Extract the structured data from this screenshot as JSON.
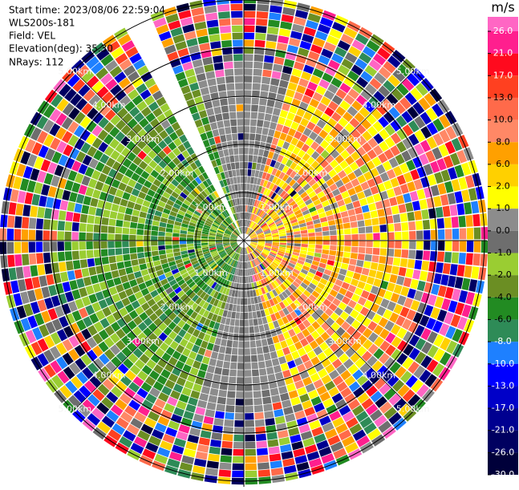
{
  "chart_data": {
    "type": "ppi",
    "info": [
      "Start time: 2023/08/06 22:59:04",
      "WLS200s-181",
      "Field: VEL",
      "Elevation(deg): 35.30",
      "NRays: 112"
    ],
    "range_rings": [
      {
        "value": 1,
        "label": "1.00km"
      },
      {
        "value": 2,
        "label": "2.00km"
      },
      {
        "value": 3,
        "label": "3.00km"
      },
      {
        "value": 4,
        "label": "4.00km"
      },
      {
        "value": 5,
        "label": "5.00km"
      }
    ],
    "colorbar": {
      "unit": "m/s",
      "ticks": [
        {
          "value": 26,
          "label": "26.0"
        },
        {
          "value": 21,
          "label": "21.0"
        },
        {
          "value": 17,
          "label": "17.0"
        },
        {
          "value": 13,
          "label": "13.0"
        },
        {
          "value": 10,
          "label": "10.0"
        },
        {
          "value": 8,
          "label": "8.0"
        },
        {
          "value": 6,
          "label": "6.0"
        },
        {
          "value": 2,
          "label": "2.0"
        },
        {
          "value": 1,
          "label": "1.0"
        },
        {
          "value": 0,
          "label": "0.0"
        },
        {
          "value": -1,
          "label": "-1.0"
        },
        {
          "value": -2,
          "label": "-2.0"
        },
        {
          "value": -4,
          "label": "-4.0"
        },
        {
          "value": -6,
          "label": "-6.0"
        },
        {
          "value": -8,
          "label": "-8.0"
        },
        {
          "value": -10,
          "label": "-10.0"
        },
        {
          "value": -13,
          "label": "-13.0"
        },
        {
          "value": -17,
          "label": "-17.0"
        },
        {
          "value": -21,
          "label": "-21.0"
        },
        {
          "value": -26,
          "label": "-26.0"
        },
        {
          "value": -30,
          "label": "-30.0"
        }
      ],
      "colors": [
        "#ff66c4",
        "#ff1f8e",
        "#ff0a1e",
        "#ff4020",
        "#ff6a4a",
        "#ff8866",
        "#ffa000",
        "#ffd000",
        "#ffff00",
        "#8c8c8c",
        "#6e6e6e",
        "#9acd32",
        "#6b8e23",
        "#228b22",
        "#2e8b57",
        "#1e80ff",
        "#0000ff",
        "#0000c8",
        "#000090",
        "#000060",
        "#00003a"
      ]
    }
  }
}
